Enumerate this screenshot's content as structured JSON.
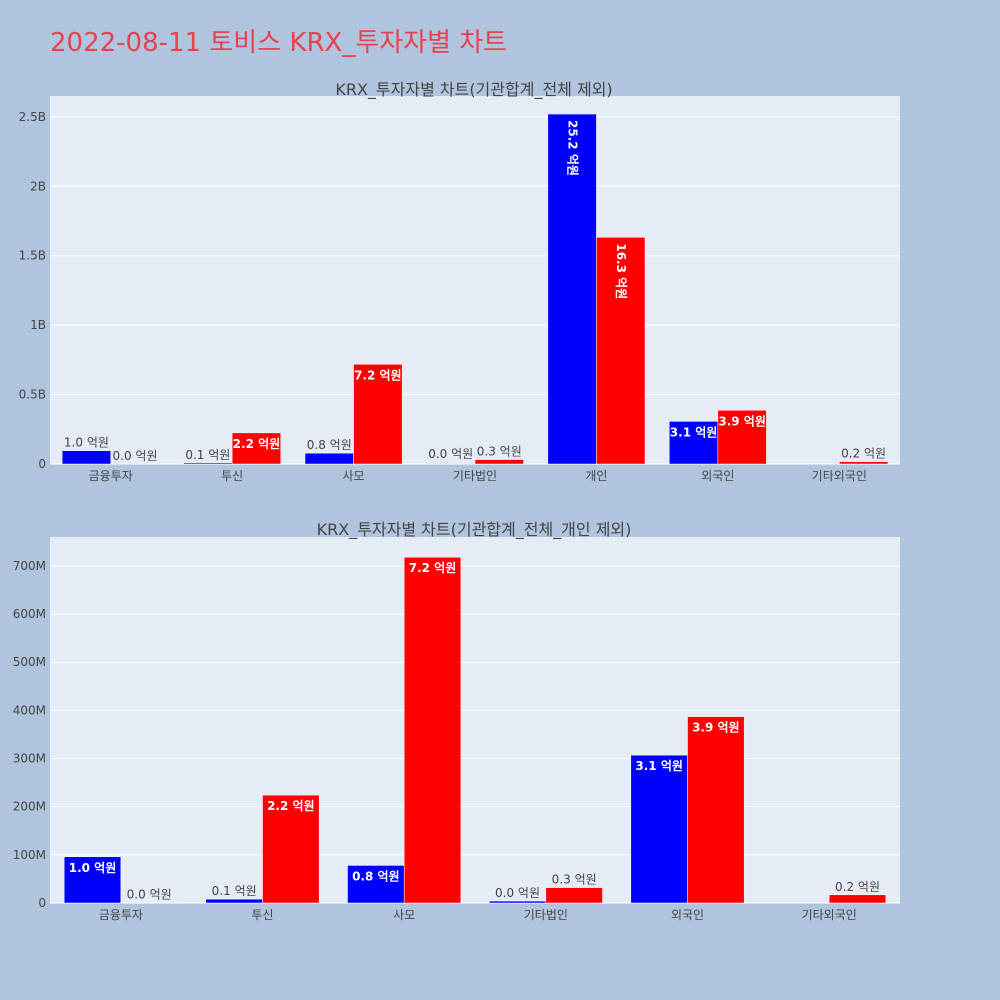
{
  "title": "2022-08-11 토비스 KRX_투자자별 차트",
  "colors": {
    "series1": "#0000ff",
    "series2": "#ff0000",
    "plot_bg": "#e5ecf6",
    "page_bg": "#b0c4de",
    "title": "#e8414f"
  },
  "chart_data": [
    {
      "type": "bar",
      "title": "KRX_투자자별 차트(기관합계_전체 제외)",
      "categories": [
        "금융투자",
        "투신",
        "사모",
        "기타법인",
        "개인",
        "외국인",
        "기타외국인"
      ],
      "series": [
        {
          "values": [
            96000000,
            8000000,
            78000000,
            4000000,
            2520000000,
            307000000,
            0
          ],
          "labels": [
            "1.0 억원",
            "0.1 억원",
            "0.8 억원",
            "",
            "25.2 억원",
            "3.1 억원",
            ""
          ]
        },
        {
          "values": [
            1000000,
            224000000,
            718000000,
            32000000,
            1632000000,
            387000000,
            17000000
          ],
          "labels": [
            "0.0 억원",
            "2.2 억원",
            "7.2 억원",
            "0.3 억원",
            "16.3 억원",
            "3.9 억원",
            "0.2 억원"
          ]
        }
      ],
      "ylim": [
        0,
        2650000000
      ],
      "yticks": [
        0,
        500000000,
        1000000000,
        1500000000,
        2000000000,
        2500000000
      ],
      "ytick_labels": [
        "0",
        "0.5B",
        "1B",
        "1.5B",
        "2B",
        "2.5B"
      ],
      "extra_labels": [
        {
          "category_index": 3,
          "text": "0.0 억원"
        }
      ],
      "grid": true,
      "legend": "none"
    },
    {
      "type": "bar",
      "title": "KRX_투자자별 차트(기관합계_전체_개인 제외)",
      "categories": [
        "금융투자",
        "투신",
        "사모",
        "기타법인",
        "외국인",
        "기타외국인"
      ],
      "series": [
        {
          "values": [
            96000000,
            8000000,
            78000000,
            4000000,
            307000000,
            0
          ],
          "labels": [
            "1.0 억원",
            "0.1 억원",
            "0.8 억원",
            "0.0 억원",
            "3.1 억원",
            ""
          ]
        },
        {
          "values": [
            1000000,
            224000000,
            718000000,
            32000000,
            387000000,
            17000000
          ],
          "labels": [
            "0.0 억원",
            "2.2 억원",
            "7.2 억원",
            "0.3 억원",
            "3.9 억원",
            "0.2 억원"
          ]
        }
      ],
      "ylim": [
        0,
        760000000
      ],
      "yticks": [
        0,
        100000000,
        200000000,
        300000000,
        400000000,
        500000000,
        600000000,
        700000000
      ],
      "ytick_labels": [
        "0",
        "100M",
        "200M",
        "300M",
        "400M",
        "500M",
        "600M",
        "700M"
      ],
      "extra_labels": [],
      "grid": true,
      "legend": "none"
    }
  ]
}
